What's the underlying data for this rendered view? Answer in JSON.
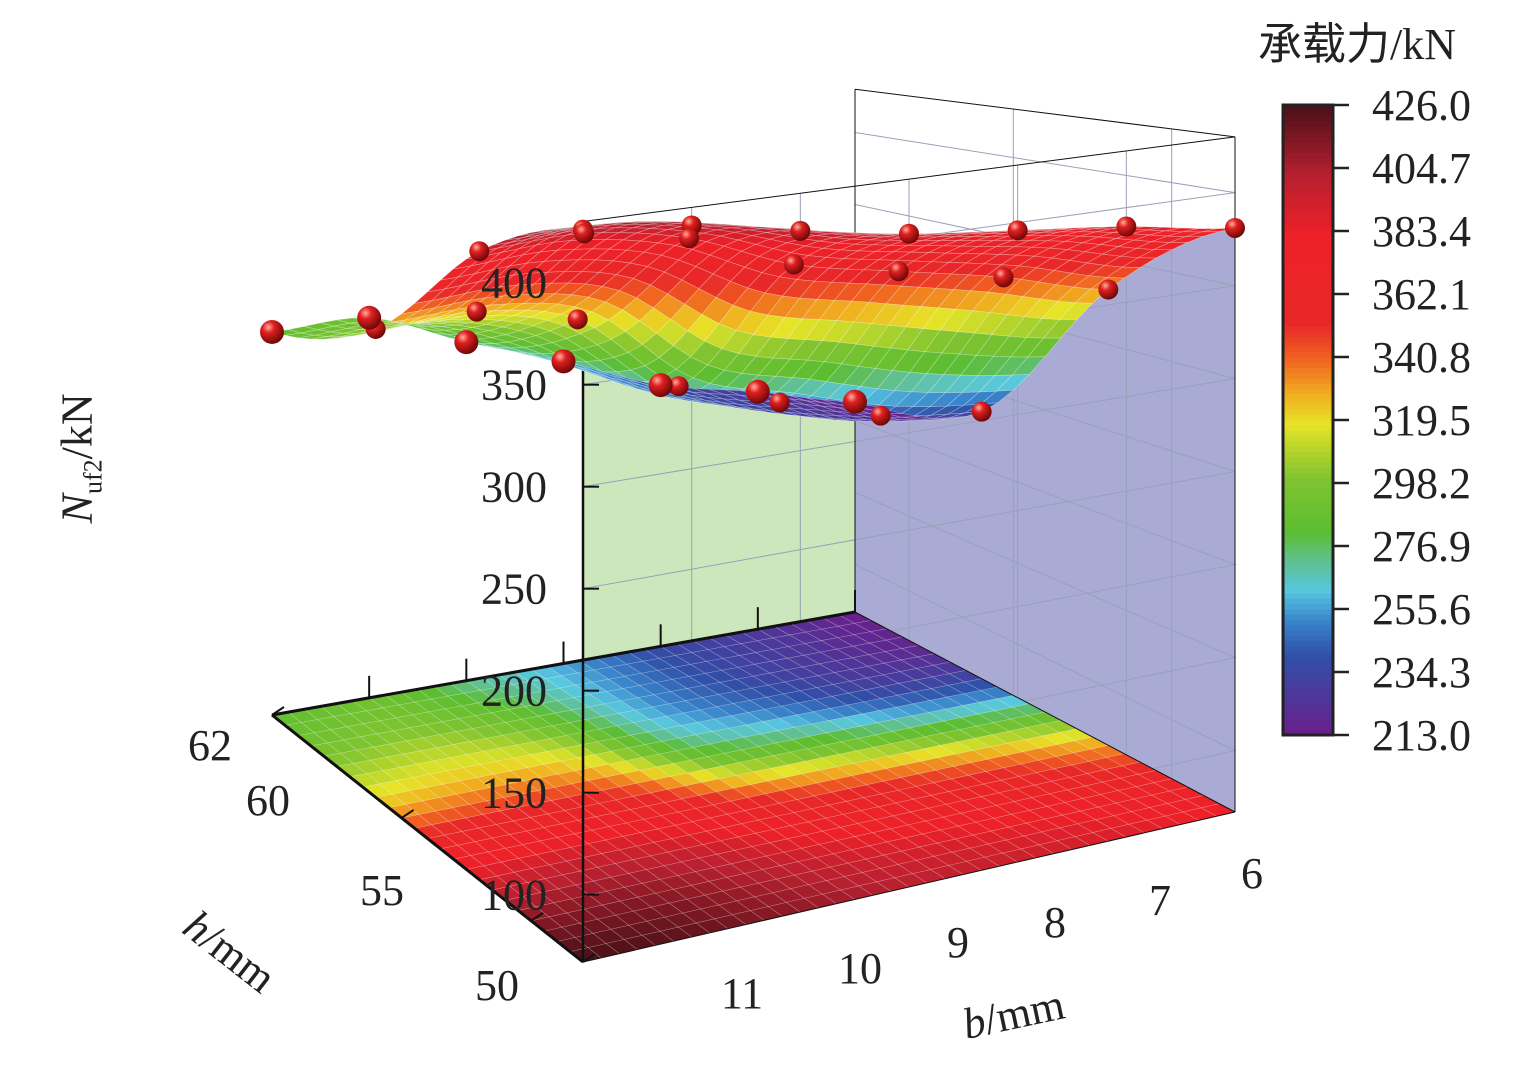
{
  "chart_data": {
    "type": "surface3d",
    "title": "",
    "xlabel_var": "b",
    "xlabel_unit": "/mm",
    "ylabel_var": "h",
    "ylabel_unit": "/mm",
    "zlabel_var": "N",
    "zlabel_sub": "uf2",
    "zlabel_unit": "/kN",
    "b": [
      12,
      11,
      10,
      9,
      8,
      7,
      6
    ],
    "h": [
      50,
      54,
      58,
      62
    ],
    "z": [
      [
        285,
        290,
        272,
        256,
        236,
        226,
        213
      ],
      [
        320,
        325,
        316,
        272,
        256,
        241,
        236
      ],
      [
        390,
        394,
        386,
        366,
        356,
        346,
        332
      ],
      [
        426,
        421,
        411,
        402,
        396,
        390,
        381
      ]
    ],
    "b_ticks": [
      "11",
      "10",
      "9",
      "8",
      "7",
      "6"
    ],
    "h_ticks": [
      "50",
      "55",
      "60",
      "62"
    ],
    "z_ticks": [
      "100",
      "150",
      "200",
      "250",
      "300",
      "350",
      "400"
    ],
    "zlim": [
      67,
      430
    ],
    "colorbar": {
      "title": "承载力/kN",
      "ticks": [
        "426.0",
        "404.7",
        "383.4",
        "362.1",
        "340.8",
        "319.5",
        "298.2",
        "276.9",
        "255.6",
        "234.3",
        "213.0"
      ],
      "range": [
        213,
        426
      ]
    },
    "colors": {
      "wall_h": "#c6e4b4",
      "wall_b": "#a8a8d6",
      "marker": "#d01818"
    }
  }
}
